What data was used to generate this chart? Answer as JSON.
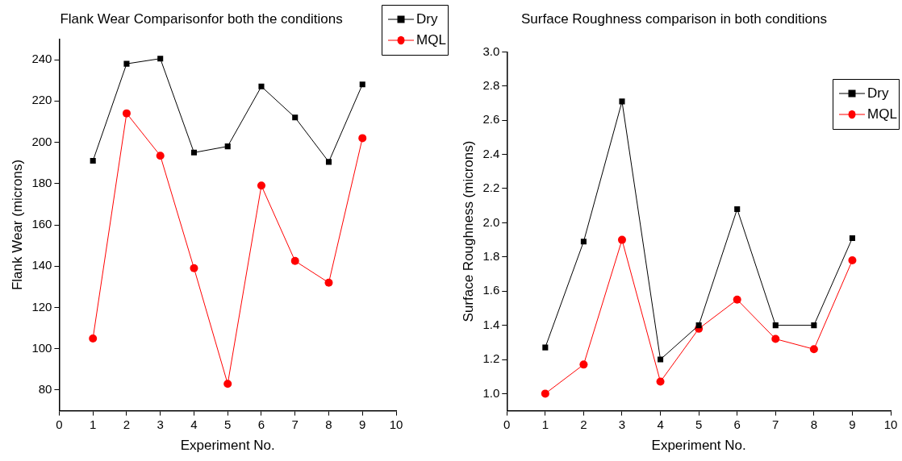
{
  "chart_data": [
    {
      "type": "line",
      "title": "Flank Wear Comparisonfor both the conditions",
      "xlabel": "Experiment No.",
      "ylabel": "Flank Wear (microns)",
      "x": [
        1,
        2,
        3,
        4,
        5,
        6,
        7,
        8,
        9
      ],
      "xlim": [
        0,
        10
      ],
      "xticks": [
        0,
        1,
        2,
        3,
        4,
        5,
        6,
        7,
        8,
        9,
        10
      ],
      "ylim": [
        70,
        250
      ],
      "yticks": [
        80,
        100,
        120,
        140,
        160,
        180,
        200,
        220,
        240
      ],
      "grid": false,
      "legend": "top right",
      "line_style": "solid",
      "series": [
        {
          "name": "Dry",
          "color": "#000000",
          "marker": "square",
          "values": [
            191,
            238,
            240.5,
            195,
            198,
            227,
            212,
            190.5,
            228
          ]
        },
        {
          "name": "MQL",
          "color": "#ff0000",
          "marker": "circle",
          "values": [
            105,
            214,
            193.5,
            139,
            83,
            179,
            142.5,
            132,
            202
          ]
        }
      ]
    },
    {
      "type": "line",
      "title": "Surface Roughness comparison in both conditions",
      "xlabel": "Experiment No.",
      "ylabel": "Surface Roughness (microns)",
      "x": [
        1,
        2,
        3,
        4,
        5,
        6,
        7,
        8,
        9
      ],
      "xlim": [
        0,
        10
      ],
      "xticks": [
        0,
        1,
        2,
        3,
        4,
        5,
        6,
        7,
        8,
        9,
        10
      ],
      "ylim": [
        0.9,
        3.0
      ],
      "yticks": [
        {
          "value": 1.0,
          "label": "1.0"
        },
        1.2,
        1.4,
        1.6,
        1.8,
        {
          "value": 2.0,
          "label": "2.0"
        },
        2.2,
        2.4,
        2.6,
        2.8,
        {
          "value": 3.0,
          "label": "3.0"
        }
      ],
      "grid": false,
      "legend": "top right",
      "line_style": "solid",
      "series": [
        {
          "name": "Dry",
          "color": "#000000",
          "marker": "square",
          "values": [
            1.27,
            1.89,
            2.71,
            1.2,
            1.4,
            2.08,
            1.4,
            1.4,
            1.91
          ]
        },
        {
          "name": "MQL",
          "color": "#ff0000",
          "marker": "circle",
          "values": [
            1.0,
            1.17,
            1.9,
            1.07,
            1.38,
            1.55,
            1.32,
            1.26,
            1.78
          ]
        }
      ]
    }
  ]
}
